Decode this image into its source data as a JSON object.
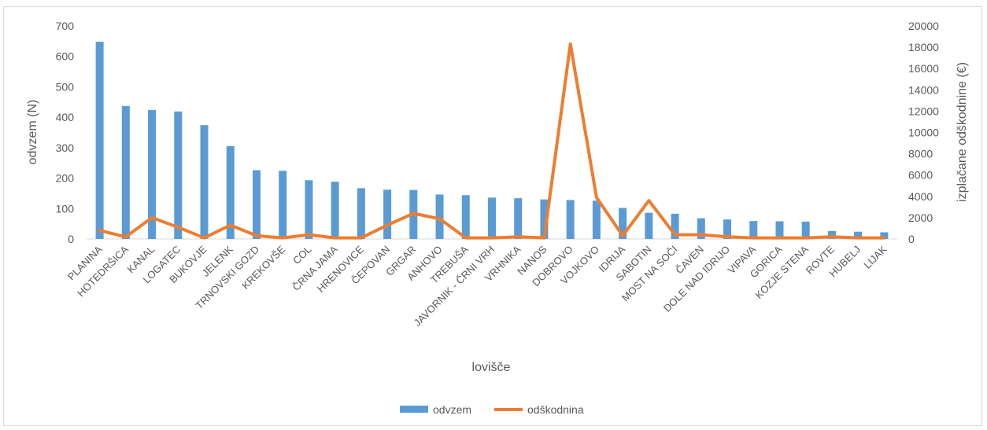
{
  "chart_data": {
    "type": "bar",
    "categories": [
      "PLANINA",
      "HOTEDRŠICA",
      "KANAL",
      "LOGATEC",
      "BUKOVJE",
      "JELENK",
      "TRNOVSKI GOZD",
      "KREKOVŠE",
      "COL",
      "ČRNA JAMA",
      "HRENOVICE",
      "ČEPOVAN",
      "GRGAR",
      "ANHOVO",
      "TREBUŠA",
      "JAVORNIK - ČRNI VRH",
      "VRHNIKA",
      "NANOS",
      "DOBROVO",
      "VOJKOVO",
      "IDRIJA",
      "SABOTIN",
      "MOST NA SOČI",
      "ČAVEN",
      "DOLE NAD IDRIJO",
      "VIPAVA",
      "GORICA",
      "KOZJE STENA",
      "ROVTE",
      "HUBELJ",
      "LIJAK"
    ],
    "series": [
      {
        "name": "odvzem",
        "type": "bar",
        "axis": "left",
        "color": "#5B9BD5",
        "values": [
          648,
          437,
          424,
          419,
          374,
          305,
          226,
          224,
          193,
          188,
          167,
          162,
          161,
          146,
          144,
          136,
          134,
          130,
          128,
          126,
          102,
          86,
          83,
          68,
          64,
          59,
          58,
          57,
          26,
          24,
          22
        ]
      },
      {
        "name": "odškodnina",
        "type": "line",
        "axis": "right",
        "color": "#ED7D31",
        "values": [
          800,
          200,
          2000,
          1100,
          100,
          1300,
          300,
          100,
          400,
          100,
          100,
          1300,
          2400,
          1900,
          100,
          100,
          200,
          100,
          18300,
          3900,
          300,
          3600,
          400,
          400,
          200,
          100,
          100,
          100,
          200,
          100,
          100
        ]
      }
    ],
    "xlabel": "lovišče",
    "ylabel": "odvzem (N)",
    "y2label": "izplačane odškodnine (€)",
    "ylim": [
      0,
      700
    ],
    "y_ticks": [
      "0",
      "100",
      "200",
      "300",
      "400",
      "500",
      "600",
      "700"
    ],
    "y2lim": [
      0,
      20000
    ],
    "y2_ticks": [
      "0",
      "2000",
      "4000",
      "6000",
      "8000",
      "10000",
      "12000",
      "14000",
      "16000",
      "18000",
      "20000"
    ],
    "grid": false,
    "legend_position": "bottom"
  }
}
